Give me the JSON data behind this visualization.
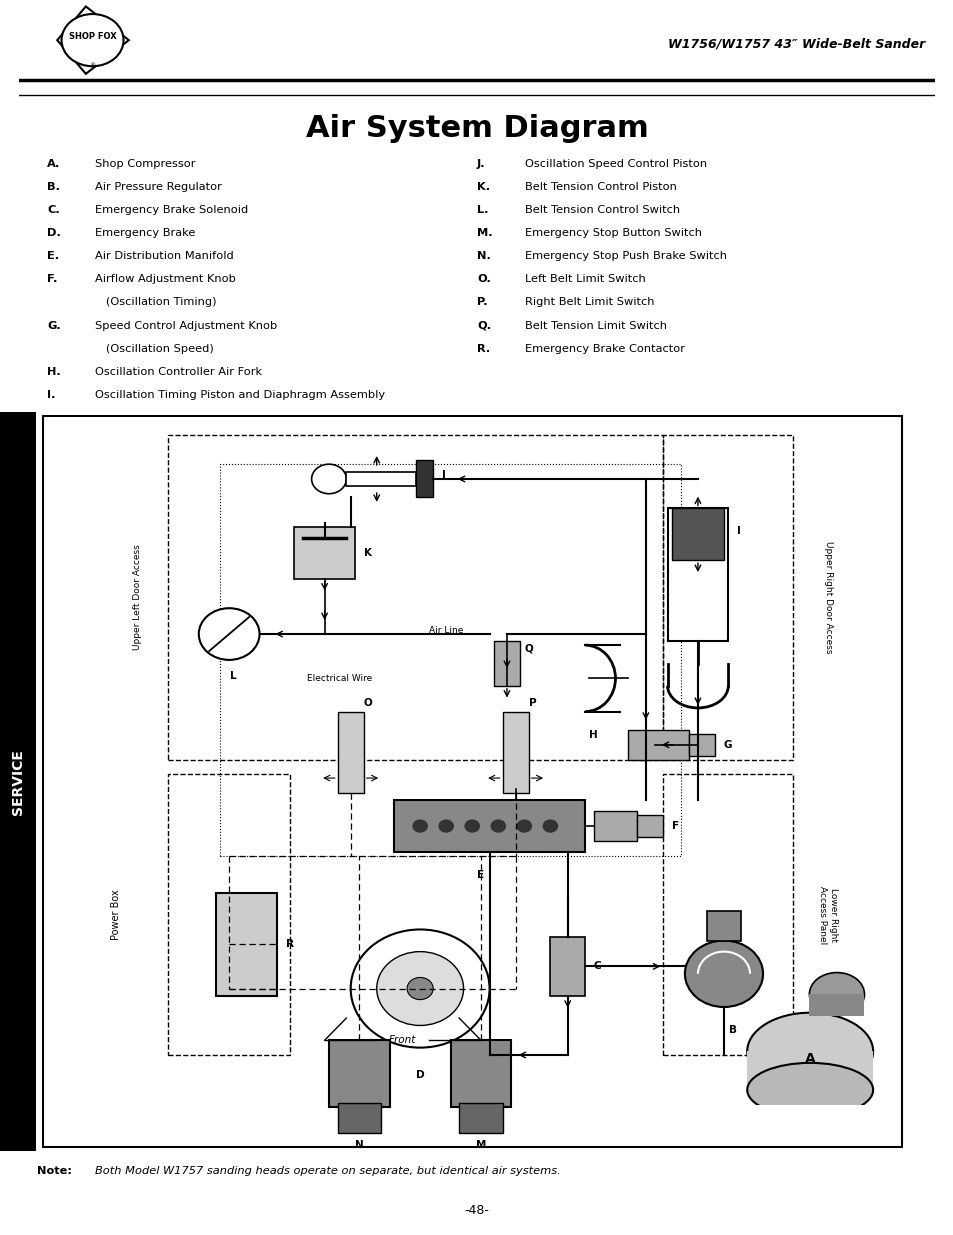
{
  "title": "Air System Diagram",
  "header_right": "W1756/W1757 43″ Wide-Belt Sander",
  "page_number": "-48-",
  "note_bold": "Note:",
  "note_italic": "Both Model W1757 sanding heads operate on separate, but identical air systems.",
  "service_label": "SERVICE",
  "legend_left": [
    [
      "A.",
      "Shop Compressor"
    ],
    [
      "B.",
      "Air Pressure Regulator"
    ],
    [
      "C.",
      "Emergency Brake Solenoid"
    ],
    [
      "D.",
      "Emergency Brake"
    ],
    [
      "E.",
      "Air Distribution Manifold"
    ],
    [
      "F.",
      "Airflow Adjustment Knob"
    ],
    [
      "",
      "   (Oscillation Timing)"
    ],
    [
      "G.",
      "Speed Control Adjustment Knob"
    ],
    [
      "",
      "   (Oscillation Speed)"
    ],
    [
      "H.",
      "Oscillation Controller Air Fork"
    ],
    [
      "I.",
      "Oscillation Timing Piston and Diaphragm Assembly"
    ]
  ],
  "legend_right": [
    [
      "J.",
      "Oscillation Speed Control Piston"
    ],
    [
      "K.",
      "Belt Tension Control Piston"
    ],
    [
      "L.",
      "Belt Tension Control Switch"
    ],
    [
      "M.",
      "Emergency Stop Button Switch"
    ],
    [
      "N.",
      "Emergency Stop Push Brake Switch"
    ],
    [
      "O.",
      "Left Belt Limit Switch"
    ],
    [
      "P.",
      "Right Belt Limit Switch"
    ],
    [
      "Q.",
      "Belt Tension Limit Switch"
    ],
    [
      "R.",
      "Emergency Brake Contactor"
    ]
  ]
}
